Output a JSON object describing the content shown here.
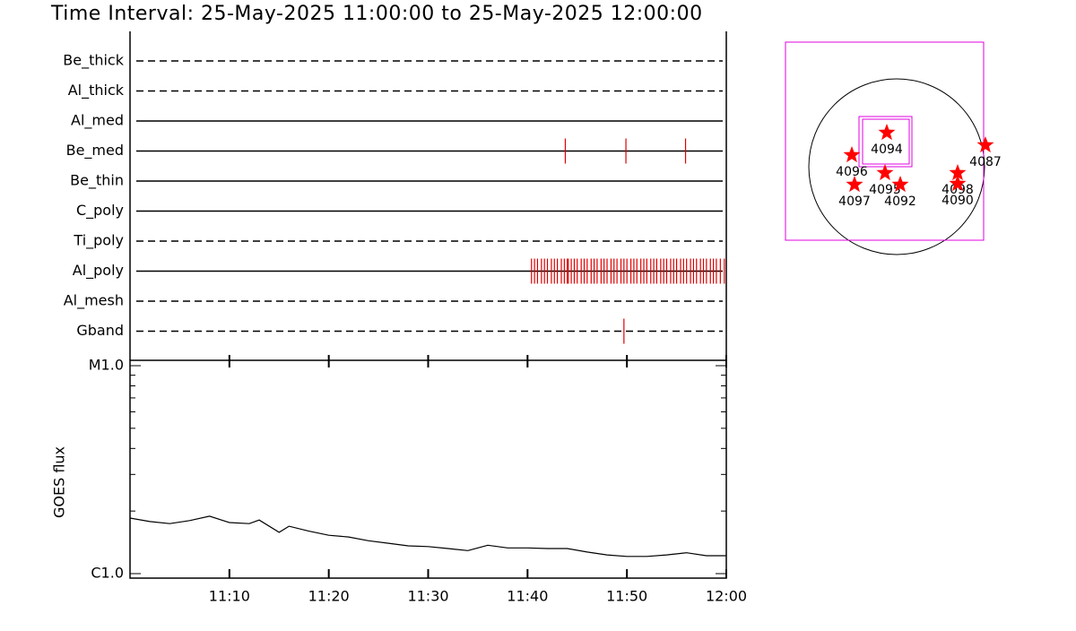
{
  "chart_data": [
    {
      "type": "event",
      "title": "Time Interval: 25-May-2025 11:00:00 to 25-May-2025 12:00:00",
      "xlim": [
        0,
        60
      ],
      "rows": [
        {
          "name": "Be_thick",
          "line": "dashed",
          "events": []
        },
        {
          "name": "Al_thick",
          "line": "dashed",
          "events": []
        },
        {
          "name": "Al_med",
          "line": "solid",
          "events": []
        },
        {
          "name": "Be_med",
          "line": "solid",
          "events": [
            43.8,
            49.9,
            55.9
          ]
        },
        {
          "name": "Be_thin",
          "line": "solid",
          "events": []
        },
        {
          "name": "C_poly",
          "line": "solid",
          "events": []
        },
        {
          "name": "Ti_poly",
          "line": "dashed",
          "events": []
        },
        {
          "name": "Al_poly",
          "line": "solid",
          "events": [
            40.4,
            40.7,
            41.0,
            41.4,
            41.7,
            42.0,
            42.4,
            42.7,
            43.0,
            43.4,
            43.7,
            44.0,
            44.1,
            44.4,
            44.7,
            45.0,
            45.4,
            45.7,
            46.0,
            46.4,
            46.7,
            47.0,
            47.4,
            47.7,
            48.0,
            48.4,
            48.7,
            49.0,
            49.4,
            49.7,
            50.0,
            50.4,
            50.7,
            51.0,
            51.4,
            51.7,
            52.0,
            52.4,
            52.7,
            53.0,
            53.4,
            53.7,
            54.0,
            54.4,
            54.7,
            55.0,
            55.4,
            55.7,
            56.0,
            56.4,
            56.7,
            57.0,
            57.4,
            57.7,
            58.0,
            58.4,
            58.7,
            59.0,
            59.4,
            59.8
          ]
        },
        {
          "name": "Al_mesh",
          "line": "dashed",
          "events": []
        },
        {
          "name": "Gband",
          "line": "dashed",
          "events": [
            49.7
          ]
        }
      ],
      "event_color": "#e00000"
    },
    {
      "type": "line",
      "ylabel": "GOES flux",
      "log": true,
      "color": "#000000",
      "xlim": [
        0,
        60
      ],
      "xticks": [
        {
          "value": 10,
          "label": "11:10"
        },
        {
          "value": 20,
          "label": "11:20"
        },
        {
          "value": 30,
          "label": "11:30"
        },
        {
          "value": 40,
          "label": "11:40"
        },
        {
          "value": 50,
          "label": "11:50"
        },
        {
          "value": 60,
          "label": "12:00"
        }
      ],
      "ylim": [
        1e-06,
        1e-05
      ],
      "yticks": [
        {
          "value": 1e-06,
          "label": "C1.0"
        },
        {
          "value": 1e-05,
          "label": "M1.0"
        }
      ],
      "yminor": [
        2e-06,
        3e-06,
        4e-06,
        5e-06,
        6e-06,
        7e-06,
        8e-06,
        9e-06
      ],
      "x": [
        0,
        2,
        4,
        6,
        8,
        10,
        12,
        13,
        15,
        16,
        18,
        20,
        22,
        24,
        26,
        28,
        30,
        32,
        34,
        35,
        36,
        38,
        40,
        42,
        44,
        46,
        48,
        50,
        52,
        54,
        56,
        58,
        60
      ],
      "values": [
        1.85e-06,
        1.78e-06,
        1.74e-06,
        1.8e-06,
        1.89e-06,
        1.76e-06,
        1.74e-06,
        1.81e-06,
        1.58e-06,
        1.69e-06,
        1.6e-06,
        1.53e-06,
        1.5e-06,
        1.44e-06,
        1.4e-06,
        1.36e-06,
        1.35e-06,
        1.32e-06,
        1.29e-06,
        1.33e-06,
        1.37e-06,
        1.33e-06,
        1.33e-06,
        1.32e-06,
        1.32e-06,
        1.27e-06,
        1.23e-06,
        1.21e-06,
        1.21e-06,
        1.23e-06,
        1.26e-06,
        1.22e-06,
        1.22e-06
      ]
    }
  ],
  "map": {
    "regions": [
      "4094",
      "4096",
      "4095",
      "4097",
      "4092",
      "4098",
      "4090",
      "4087"
    ],
    "star_color": "#ff0000",
    "box_color": "#e000e0"
  }
}
